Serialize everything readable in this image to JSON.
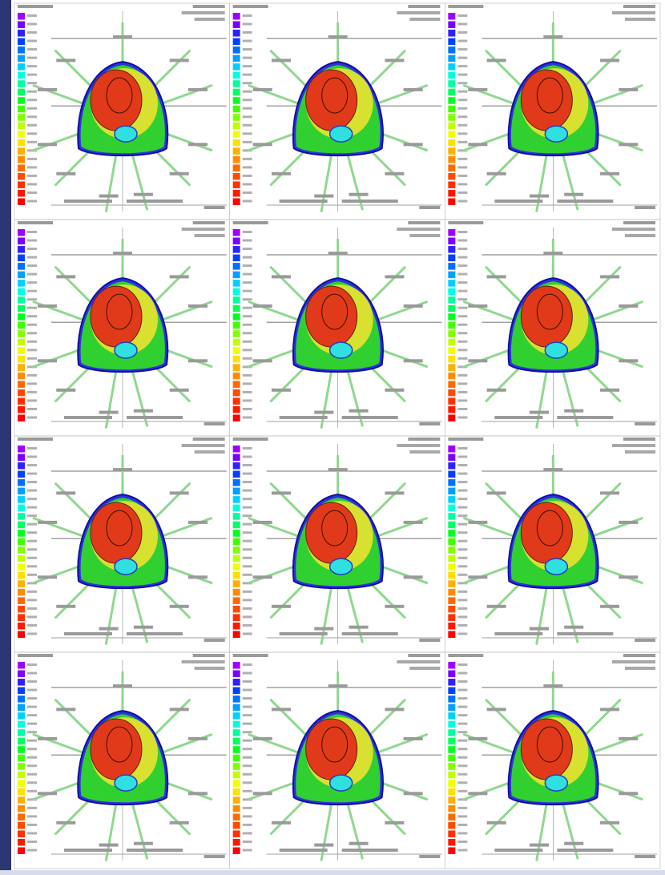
{
  "layout": {
    "rows": 4,
    "columns": 3
  },
  "dose_colors": [
    "#a000ff",
    "#7a00ff",
    "#3020ff",
    "#0040ff",
    "#0070ff",
    "#00a0ff",
    "#00d0ff",
    "#00ffe0",
    "#00ffa0",
    "#00ff60",
    "#00ff20",
    "#40ff00",
    "#80ff00",
    "#c0ff00",
    "#f0ff00",
    "#ffe000",
    "#ffb000",
    "#ff8c00",
    "#ff6a00",
    "#ff4a00",
    "#ff3000",
    "#ff1800",
    "#ff0000"
  ]
}
